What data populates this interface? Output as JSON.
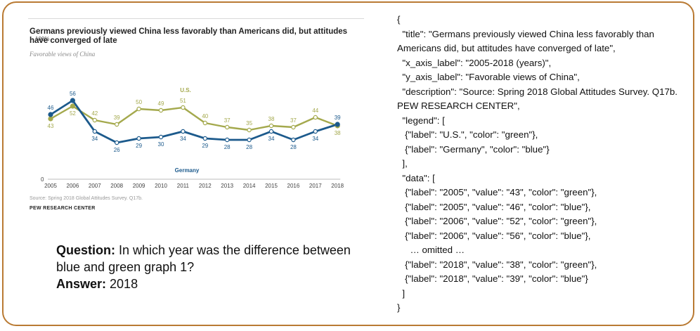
{
  "chart_data": {
    "type": "line",
    "title": "Germans previously viewed China less favorably than Americans did, but attitudes have converged of late",
    "subtitle": "Favorable views of China",
    "x": [
      "2005",
      "2006",
      "2007",
      "2008",
      "2009",
      "2010",
      "2011",
      "2012",
      "2013",
      "2014",
      "2015",
      "2016",
      "2017",
      "2018"
    ],
    "ylim": [
      0,
      100
    ],
    "ytick_labels": [
      "100%",
      "0"
    ],
    "series": [
      {
        "name": "U.S.",
        "color": "#a4a94d",
        "values": [
          43,
          52,
          42,
          39,
          50,
          49,
          51,
          40,
          37,
          35,
          38,
          37,
          44,
          38
        ]
      },
      {
        "name": "Germany",
        "color": "#1c5a8c",
        "values": [
          46,
          56,
          34,
          26,
          29,
          30,
          34,
          29,
          28,
          28,
          34,
          28,
          34,
          39
        ]
      }
    ],
    "source": "Source: Spring 2018 Global Attitudes Survey. Q17b.",
    "brand": "PEW RESEARCH CENTER"
  },
  "qa": {
    "question_label": "Question:",
    "question_text": "In which year was the difference between blue and green graph 1?",
    "answer_label": "Answer:",
    "answer_text": "2018"
  },
  "json_text": "{\n  \"title\": \"Germans previously viewed China less favorably than Americans did, but attitudes have converged of late\",\n  \"x_axis_label\": \"2005-2018 (years)\",\n  \"y_axis_label\": \"Favorable views of China\",\n  \"description\": \"Source: Spring 2018 Global Attitudes Survey. Q17b. PEW RESEARCH CENTER\",\n  \"legend\": [\n   {\"label\": \"U.S.\", \"color\": \"green\"},\n   {\"label\": \"Germany\", \"color\": \"blue\"}\n  ],\n  \"data\": [\n   {\"label\": \"2005\", \"value\": \"43\", \"color\": \"green\"},\n   {\"label\": \"2005\", \"value\": \"46\", \"color\": \"blue\"},\n   {\"label\": \"2006\", \"value\": \"52\", \"color\": \"green\"},\n   {\"label\": \"2006\", \"value\": \"56\", \"color\": \"blue\"},\n     … omitted …\n   {\"label\": \"2018\", \"value\": \"38\", \"color\": \"green\"},\n   {\"label\": \"2018\", \"value\": \"39\", \"color\": \"blue\"}\n  ]\n}"
}
